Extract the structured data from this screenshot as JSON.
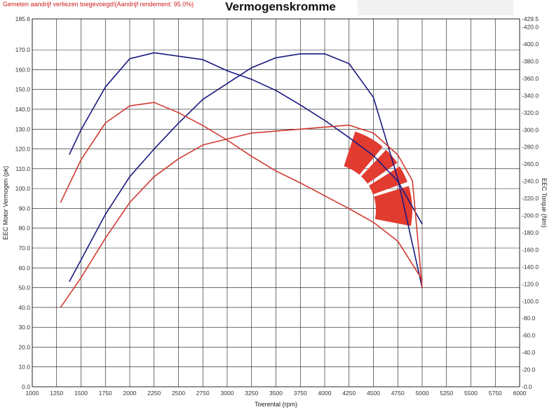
{
  "header": {
    "note": "Gemeten aandrijf verliezen toegevoegd!(Aandrijf rendement: 95.0%)",
    "title": "Vermogenskromme"
  },
  "colors": {
    "red": "#d03a30",
    "blue": "#1a1a80",
    "grid": "#111111",
    "logo": "#e23b30"
  },
  "chart_data": {
    "type": "line",
    "title": "Vermogenskromme",
    "xlabel": "Toerental (rpm)",
    "ylabel": "EEC Motor Vermogen (pk)",
    "y2label": "EEC Torque (Nm)",
    "xlim": [
      1000,
      6000
    ],
    "ylim": [
      0,
      185.6
    ],
    "y2lim": [
      0,
      429.5
    ],
    "grid": true,
    "x_ticks": [
      "1000",
      "1250",
      "1500",
      "1750",
      "2000",
      "2250",
      "2500",
      "2750",
      "3000",
      "3250",
      "3500",
      "3750",
      "4000",
      "4250",
      "4500",
      "4750",
      "5000",
      "5250",
      "5500",
      "5750",
      "6000"
    ],
    "y_ticks": [
      "0.0",
      "10.0",
      "20.0",
      "30.0",
      "40.0",
      "50.0",
      "60.0",
      "70.0",
      "80.0",
      "90.0",
      "100.0",
      "110.0",
      "120.0",
      "130.0",
      "140.0",
      "150.0",
      "160.0",
      "170.0",
      "185.6"
    ],
    "y2_ticks": [
      "0.0",
      "20.0",
      "40.0",
      "60.0",
      "80.0",
      "100.0",
      "120.0",
      "140.0",
      "160.0",
      "180.0",
      "200.0",
      "220.0",
      "240.0",
      "260.0",
      "280.0",
      "300.0",
      "320.0",
      "340.0",
      "360.0",
      "380.0",
      "400.0",
      "420.0",
      "429.5"
    ],
    "series": [
      {
        "color": "blue",
        "axis": "left",
        "x": [
          1380,
          1500,
          1750,
          2000,
          2250,
          2500,
          2750,
          3000,
          3250,
          3500,
          3750,
          4000,
          4250,
          4500,
          4750,
          5000
        ],
        "y": [
          53,
          64,
          87,
          106,
          120,
          133,
          145,
          153,
          161,
          166,
          168,
          168,
          163,
          146,
          105,
          50
        ]
      },
      {
        "color": "blue",
        "axis": "right",
        "x": [
          1380,
          1500,
          1750,
          2000,
          2250,
          2500,
          2750,
          3000,
          3250,
          3500,
          3750,
          4000,
          4250,
          4500,
          4750,
          5000
        ],
        "y": [
          271,
          300,
          350,
          383,
          390,
          386,
          382,
          369,
          359,
          346,
          329,
          311,
          291,
          270,
          240,
          190
        ]
      },
      {
        "color": "red",
        "axis": "left",
        "x": [
          1290,
          1500,
          1750,
          2000,
          2250,
          2500,
          2750,
          3000,
          3250,
          3500,
          3750,
          4000,
          4250,
          4500,
          4750,
          4900,
          5000
        ],
        "y": [
          40,
          55,
          75,
          93,
          106,
          115,
          122,
          125,
          128,
          129,
          130,
          131,
          132,
          128,
          117,
          104,
          50
        ]
      },
      {
        "color": "red",
        "axis": "right",
        "x": [
          1290,
          1500,
          1750,
          2000,
          2250,
          2500,
          2750,
          3000,
          3250,
          3500,
          3750,
          4000,
          4250,
          4500,
          4750,
          5000
        ],
        "y": [
          215,
          265,
          308,
          328,
          332,
          320,
          305,
          288,
          269,
          252,
          238,
          223,
          208,
          192,
          170,
          125
        ]
      }
    ]
  }
}
